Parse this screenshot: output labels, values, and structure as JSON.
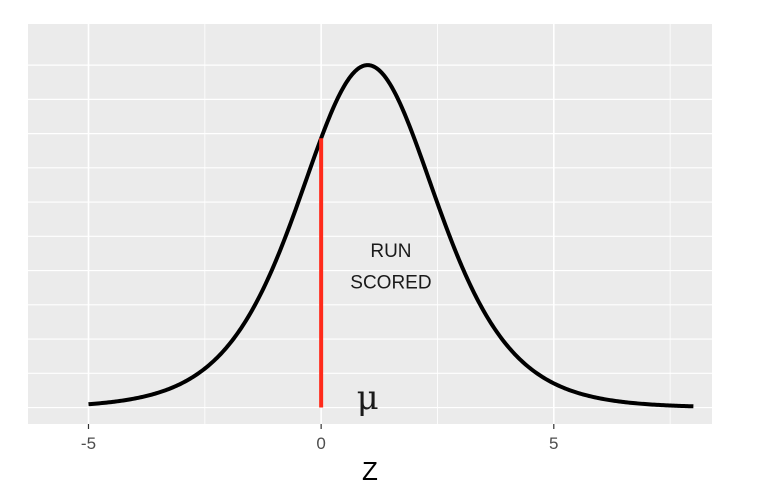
{
  "chart_data": {
    "type": "line",
    "title": "",
    "xlabel": "Z",
    "ylabel": "",
    "xlim": [
      -6.3,
      8.4
    ],
    "ylim": [
      -0.012,
      0.28
    ],
    "x_ticks": [
      {
        "value": -5,
        "label": "-5"
      },
      {
        "value": 0,
        "label": "0"
      },
      {
        "value": 5,
        "label": "5"
      }
    ],
    "x_minor_ticks": [
      -2.5,
      2.5,
      7.5
    ],
    "y_gridlines": [
      0.0,
      0.025,
      0.05,
      0.075,
      0.1,
      0.125,
      0.15,
      0.175,
      0.2,
      0.225,
      0.25
    ],
    "grid": true,
    "series": [
      {
        "kind": "logistic-density",
        "location": 1,
        "scale": 1,
        "x_range": [
          -5,
          8
        ],
        "color": "#000000"
      }
    ],
    "vline": {
      "x": 0,
      "color": "#ff2a1a"
    },
    "annotations": [
      {
        "text": "RUN",
        "x": 1.5,
        "y": 0.11
      },
      {
        "text": "SCORED",
        "x": 1.5,
        "y": 0.087
      },
      {
        "text": "μ",
        "x": 1.0,
        "y": -0.001
      }
    ],
    "colors": {
      "panel_background": "#ebebeb",
      "grid": "#ffffff",
      "curve": "#000000",
      "vline": "#ff2a1a"
    }
  }
}
